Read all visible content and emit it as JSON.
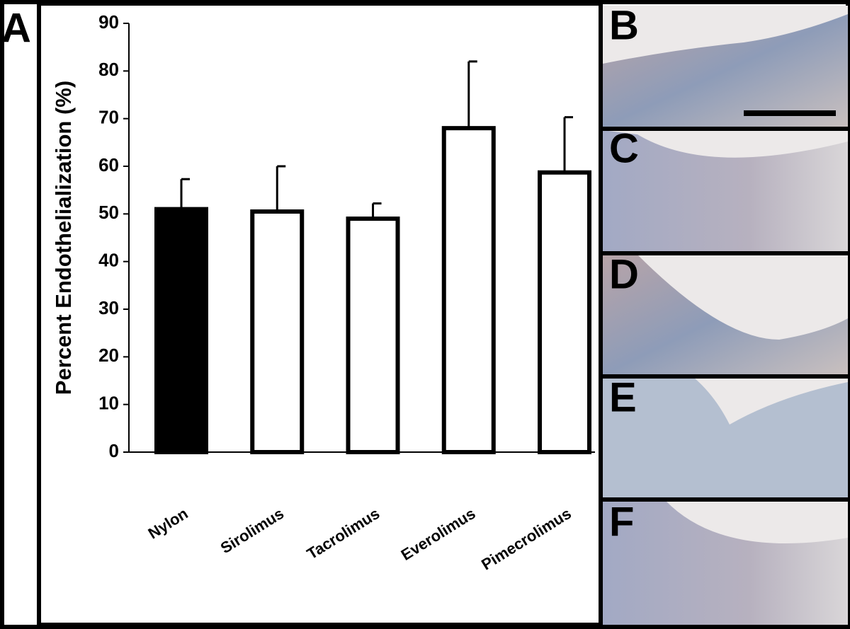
{
  "chart_data": {
    "type": "bar",
    "y_label": "Percent Endothelialization (%)",
    "categories": [
      "Nylon",
      "Sirolimus",
      "Tacrolimus",
      "Everolimus",
      "Pimecrolimus"
    ],
    "values": [
      51,
      50.5,
      49,
      68,
      58.7
    ],
    "errors": [
      6.3,
      9.5,
      3.2,
      14,
      11.6
    ],
    "colors": [
      "#000000",
      "#ffffff",
      "#ffffff",
      "#ffffff",
      "#ffffff"
    ],
    "ylim": [
      0,
      90
    ],
    "yticks": [
      0,
      10,
      20,
      30,
      40,
      50,
      60,
      70,
      80,
      90
    ],
    "grid": false
  },
  "panel_labels": [
    "A",
    "B",
    "C",
    "D",
    "E",
    "F"
  ]
}
